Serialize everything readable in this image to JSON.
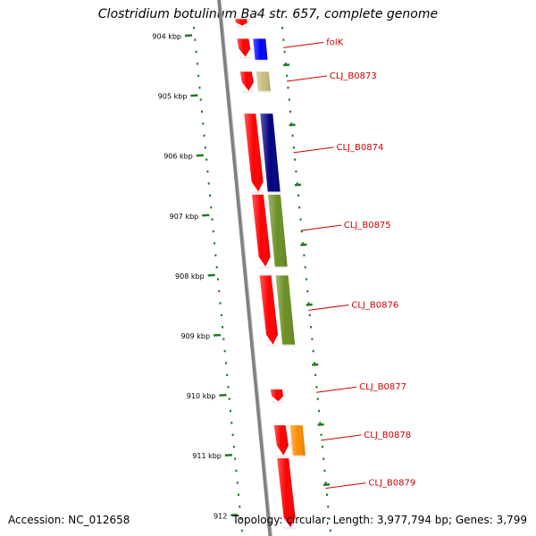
{
  "title": "Clostridium botulinum Ba4 str. 657, complete genome",
  "footer": {
    "accession": "Accession: NC_012658",
    "summary": "Topology: circular; Length: 3,977,794 bp; Genes: 3,799"
  },
  "scale_ticks": [
    "904 kbp",
    "905 kbp",
    "906 kbp",
    "907 kbp",
    "908 kbp",
    "909 kbp",
    "910 kbp",
    "911 kbp",
    "912"
  ],
  "gene_labels": [
    "folK",
    "CLJ_B0873",
    "CLJ_B0874",
    "CLJ_B0875",
    "CLJ_B0876",
    "CLJ_B0877",
    "CLJ_B0878",
    "CLJ_B0879"
  ],
  "features": [
    {
      "track": "cds",
      "start": 903.72,
      "end": 903.83,
      "color": "#ff0000"
    },
    {
      "track": "cds",
      "start": 904.05,
      "end": 904.35,
      "color": "#ff0000"
    },
    {
      "track": "gene",
      "start": 904.05,
      "end": 904.4,
      "color": "#0000ff"
    },
    {
      "track": "cds",
      "start": 904.6,
      "end": 904.92,
      "color": "#ff0000"
    },
    {
      "track": "gene",
      "start": 904.6,
      "end": 904.92,
      "color": "#c8bd7c"
    },
    {
      "track": "cds",
      "start": 905.3,
      "end": 906.6,
      "color": "#ff0000"
    },
    {
      "track": "gene",
      "start": 905.3,
      "end": 906.6,
      "color": "#000080"
    },
    {
      "track": "cds",
      "start": 906.65,
      "end": 907.85,
      "color": "#ff0000"
    },
    {
      "track": "gene",
      "start": 906.65,
      "end": 907.85,
      "color": "#6b8e23"
    },
    {
      "track": "cds",
      "start": 908.0,
      "end": 909.15,
      "color": "#ff0000"
    },
    {
      "track": "gene",
      "start": 908.0,
      "end": 909.15,
      "color": "#6b8e23"
    },
    {
      "track": "cds",
      "start": 909.9,
      "end": 910.1,
      "color": "#ff0000"
    },
    {
      "track": "cds",
      "start": 910.5,
      "end": 911.0,
      "color": "#ff0000"
    },
    {
      "track": "gene",
      "start": 910.5,
      "end": 911.0,
      "color": "#ff8c00"
    },
    {
      "track": "cds",
      "start": 911.05,
      "end": 912.2,
      "color": "#ff0000"
    }
  ],
  "label_positions": [
    904.2,
    904.76,
    905.95,
    907.25,
    908.58,
    909.95,
    910.75,
    911.55
  ],
  "colors": {
    "backbone": "#808080",
    "ticks": "#1f7a1f",
    "label": "#cc0000"
  }
}
